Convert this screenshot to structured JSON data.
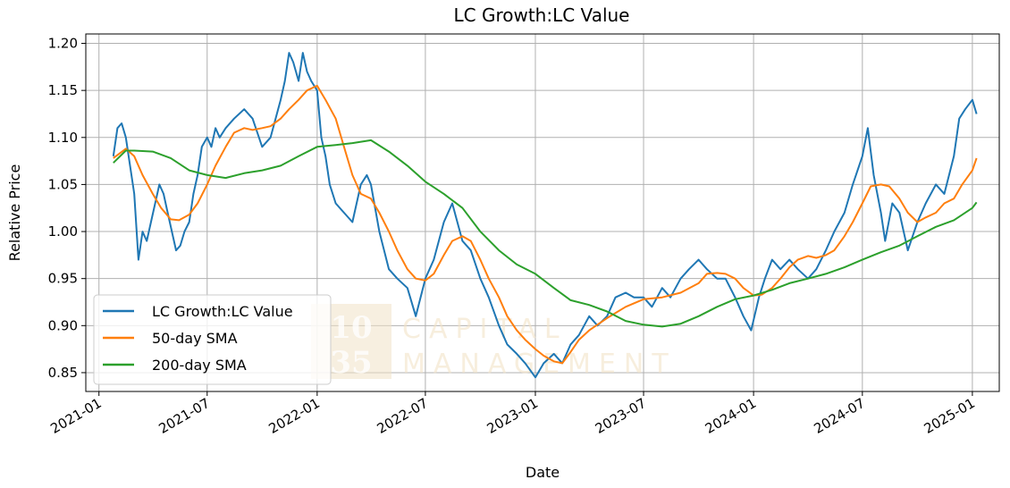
{
  "chart_data": {
    "type": "line",
    "title": "LC Growth:LC Value",
    "xlabel": "Date",
    "ylabel": "Relative Price",
    "xlim": [
      "2020-12-10",
      "2025-02-15"
    ],
    "ylim": [
      0.83,
      1.21
    ],
    "x_ticks": [
      "2021-01",
      "2021-07",
      "2022-01",
      "2022-07",
      "2023-01",
      "2023-07",
      "2024-01",
      "2024-07",
      "2025-01"
    ],
    "y_ticks": [
      "0.85",
      "0.90",
      "0.95",
      "1.00",
      "1.05",
      "1.10",
      "1.15",
      "1.20"
    ],
    "grid": true,
    "legend_position": "lower-left",
    "watermark": {
      "box_top": "10",
      "box_bottom": "35",
      "text_top": "CAPITAL",
      "text_bottom": "MANAGEMENT"
    },
    "series": [
      {
        "name": "LC Growth:LC Value",
        "color": "#1f77b4",
        "points": [
          [
            "2021-01-25",
            1.08
          ],
          [
            "2021-02-01",
            1.11
          ],
          [
            "2021-02-08",
            1.115
          ],
          [
            "2021-02-15",
            1.1
          ],
          [
            "2021-02-22",
            1.07
          ],
          [
            "2021-03-01",
            1.04
          ],
          [
            "2021-03-08",
            0.97
          ],
          [
            "2021-03-15",
            1.0
          ],
          [
            "2021-03-22",
            0.99
          ],
          [
            "2021-03-29",
            1.01
          ],
          [
            "2021-04-05",
            1.03
          ],
          [
            "2021-04-12",
            1.05
          ],
          [
            "2021-04-19",
            1.04
          ],
          [
            "2021-04-26",
            1.02
          ],
          [
            "2021-05-03",
            1.0
          ],
          [
            "2021-05-10",
            0.98
          ],
          [
            "2021-05-17",
            0.985
          ],
          [
            "2021-05-24",
            1.0
          ],
          [
            "2021-06-01",
            1.01
          ],
          [
            "2021-06-08",
            1.04
          ],
          [
            "2021-06-15",
            1.06
          ],
          [
            "2021-06-22",
            1.09
          ],
          [
            "2021-07-01",
            1.1
          ],
          [
            "2021-07-08",
            1.09
          ],
          [
            "2021-07-15",
            1.11
          ],
          [
            "2021-07-22",
            1.1
          ],
          [
            "2021-08-01",
            1.11
          ],
          [
            "2021-08-15",
            1.12
          ],
          [
            "2021-09-01",
            1.13
          ],
          [
            "2021-09-15",
            1.12
          ],
          [
            "2021-10-01",
            1.09
          ],
          [
            "2021-10-15",
            1.1
          ],
          [
            "2021-11-01",
            1.14
          ],
          [
            "2021-11-08",
            1.16
          ],
          [
            "2021-11-15",
            1.19
          ],
          [
            "2021-11-22",
            1.18
          ],
          [
            "2021-12-01",
            1.16
          ],
          [
            "2021-12-08",
            1.19
          ],
          [
            "2021-12-15",
            1.17
          ],
          [
            "2021-12-22",
            1.16
          ],
          [
            "2022-01-01",
            1.15
          ],
          [
            "2022-01-08",
            1.1
          ],
          [
            "2022-01-15",
            1.08
          ],
          [
            "2022-01-22",
            1.05
          ],
          [
            "2022-02-01",
            1.03
          ],
          [
            "2022-02-15",
            1.02
          ],
          [
            "2022-03-01",
            1.01
          ],
          [
            "2022-03-15",
            1.05
          ],
          [
            "2022-03-25",
            1.06
          ],
          [
            "2022-04-01",
            1.05
          ],
          [
            "2022-04-15",
            1.0
          ],
          [
            "2022-05-01",
            0.96
          ],
          [
            "2022-05-15",
            0.95
          ],
          [
            "2022-06-01",
            0.94
          ],
          [
            "2022-06-15",
            0.91
          ],
          [
            "2022-07-01",
            0.95
          ],
          [
            "2022-07-15",
            0.97
          ],
          [
            "2022-08-01",
            1.01
          ],
          [
            "2022-08-15",
            1.03
          ],
          [
            "2022-09-01",
            0.99
          ],
          [
            "2022-09-15",
            0.98
          ],
          [
            "2022-10-01",
            0.95
          ],
          [
            "2022-10-15",
            0.93
          ],
          [
            "2022-11-01",
            0.9
          ],
          [
            "2022-11-15",
            0.88
          ],
          [
            "2022-12-01",
            0.87
          ],
          [
            "2022-12-15",
            0.86
          ],
          [
            "2023-01-01",
            0.845
          ],
          [
            "2023-01-15",
            0.86
          ],
          [
            "2023-02-01",
            0.87
          ],
          [
            "2023-02-15",
            0.86
          ],
          [
            "2023-03-01",
            0.88
          ],
          [
            "2023-03-15",
            0.89
          ],
          [
            "2023-04-01",
            0.91
          ],
          [
            "2023-04-15",
            0.9
          ],
          [
            "2023-05-01",
            0.91
          ],
          [
            "2023-05-15",
            0.93
          ],
          [
            "2023-06-01",
            0.935
          ],
          [
            "2023-06-15",
            0.93
          ],
          [
            "2023-07-01",
            0.93
          ],
          [
            "2023-07-15",
            0.92
          ],
          [
            "2023-08-01",
            0.94
          ],
          [
            "2023-08-15",
            0.93
          ],
          [
            "2023-09-01",
            0.95
          ],
          [
            "2023-09-15",
            0.96
          ],
          [
            "2023-10-01",
            0.97
          ],
          [
            "2023-10-15",
            0.96
          ],
          [
            "2023-11-01",
            0.95
          ],
          [
            "2023-11-15",
            0.95
          ],
          [
            "2023-12-01",
            0.93
          ],
          [
            "2023-12-15",
            0.91
          ],
          [
            "2023-12-28",
            0.895
          ],
          [
            "2024-01-10",
            0.93
          ],
          [
            "2024-01-20",
            0.95
          ],
          [
            "2024-02-01",
            0.97
          ],
          [
            "2024-02-15",
            0.96
          ],
          [
            "2024-03-01",
            0.97
          ],
          [
            "2024-03-15",
            0.96
          ],
          [
            "2024-04-01",
            0.95
          ],
          [
            "2024-04-15",
            0.96
          ],
          [
            "2024-05-01",
            0.98
          ],
          [
            "2024-05-15",
            1.0
          ],
          [
            "2024-06-01",
            1.02
          ],
          [
            "2024-06-15",
            1.05
          ],
          [
            "2024-07-01",
            1.08
          ],
          [
            "2024-07-10",
            1.11
          ],
          [
            "2024-07-20",
            1.06
          ],
          [
            "2024-08-01",
            1.02
          ],
          [
            "2024-08-08",
            0.99
          ],
          [
            "2024-08-20",
            1.03
          ],
          [
            "2024-09-01",
            1.02
          ],
          [
            "2024-09-15",
            0.98
          ],
          [
            "2024-10-01",
            1.01
          ],
          [
            "2024-10-15",
            1.03
          ],
          [
            "2024-11-01",
            1.05
          ],
          [
            "2024-11-15",
            1.04
          ],
          [
            "2024-12-01",
            1.08
          ],
          [
            "2024-12-10",
            1.12
          ],
          [
            "2024-12-20",
            1.13
          ],
          [
            "2025-01-01",
            1.14
          ],
          [
            "2025-01-08",
            1.125
          ]
        ]
      },
      {
        "name": "50-day SMA",
        "color": "#ff7f0e",
        "points": [
          [
            "2021-01-25",
            1.078
          ],
          [
            "2021-02-15",
            1.088
          ],
          [
            "2021-03-01",
            1.08
          ],
          [
            "2021-03-15",
            1.06
          ],
          [
            "2021-04-01",
            1.04
          ],
          [
            "2021-04-15",
            1.025
          ],
          [
            "2021-05-01",
            1.013
          ],
          [
            "2021-05-15",
            1.012
          ],
          [
            "2021-06-01",
            1.018
          ],
          [
            "2021-06-15",
            1.03
          ],
          [
            "2021-07-01",
            1.05
          ],
          [
            "2021-07-15",
            1.07
          ],
          [
            "2021-08-01",
            1.09
          ],
          [
            "2021-08-15",
            1.105
          ],
          [
            "2021-09-01",
            1.11
          ],
          [
            "2021-09-15",
            1.108
          ],
          [
            "2021-10-01",
            1.11
          ],
          [
            "2021-10-15",
            1.112
          ],
          [
            "2021-11-01",
            1.12
          ],
          [
            "2021-11-15",
            1.13
          ],
          [
            "2021-12-01",
            1.14
          ],
          [
            "2021-12-15",
            1.15
          ],
          [
            "2022-01-01",
            1.155
          ],
          [
            "2022-01-15",
            1.14
          ],
          [
            "2022-02-01",
            1.12
          ],
          [
            "2022-02-15",
            1.09
          ],
          [
            "2022-03-01",
            1.06
          ],
          [
            "2022-03-15",
            1.04
          ],
          [
            "2022-04-01",
            1.035
          ],
          [
            "2022-04-15",
            1.02
          ],
          [
            "2022-05-01",
            1.0
          ],
          [
            "2022-05-15",
            0.98
          ],
          [
            "2022-06-01",
            0.96
          ],
          [
            "2022-06-15",
            0.95
          ],
          [
            "2022-07-01",
            0.948
          ],
          [
            "2022-07-15",
            0.955
          ],
          [
            "2022-08-01",
            0.975
          ],
          [
            "2022-08-15",
            0.99
          ],
          [
            "2022-09-01",
            0.995
          ],
          [
            "2022-09-15",
            0.99
          ],
          [
            "2022-10-01",
            0.97
          ],
          [
            "2022-10-15",
            0.95
          ],
          [
            "2022-11-01",
            0.93
          ],
          [
            "2022-11-15",
            0.91
          ],
          [
            "2022-12-01",
            0.895
          ],
          [
            "2022-12-15",
            0.885
          ],
          [
            "2023-01-01",
            0.875
          ],
          [
            "2023-01-15",
            0.868
          ],
          [
            "2023-02-01",
            0.862
          ],
          [
            "2023-02-15",
            0.86
          ],
          [
            "2023-03-01",
            0.872
          ],
          [
            "2023-03-15",
            0.885
          ],
          [
            "2023-04-01",
            0.895
          ],
          [
            "2023-05-01",
            0.908
          ],
          [
            "2023-06-01",
            0.92
          ],
          [
            "2023-07-01",
            0.928
          ],
          [
            "2023-08-01",
            0.93
          ],
          [
            "2023-09-01",
            0.935
          ],
          [
            "2023-10-01",
            0.945
          ],
          [
            "2023-10-15",
            0.955
          ],
          [
            "2023-11-01",
            0.956
          ],
          [
            "2023-11-15",
            0.955
          ],
          [
            "2023-12-01",
            0.95
          ],
          [
            "2023-12-15",
            0.94
          ],
          [
            "2024-01-01",
            0.932
          ],
          [
            "2024-01-15",
            0.933
          ],
          [
            "2024-02-01",
            0.94
          ],
          [
            "2024-02-15",
            0.95
          ],
          [
            "2024-03-01",
            0.962
          ],
          [
            "2024-03-15",
            0.97
          ],
          [
            "2024-04-01",
            0.974
          ],
          [
            "2024-04-15",
            0.972
          ],
          [
            "2024-05-01",
            0.975
          ],
          [
            "2024-05-15",
            0.98
          ],
          [
            "2024-06-01",
            0.995
          ],
          [
            "2024-06-15",
            1.01
          ],
          [
            "2024-07-01",
            1.03
          ],
          [
            "2024-07-15",
            1.048
          ],
          [
            "2024-08-01",
            1.05
          ],
          [
            "2024-08-15",
            1.048
          ],
          [
            "2024-09-01",
            1.035
          ],
          [
            "2024-09-15",
            1.02
          ],
          [
            "2024-10-01",
            1.01
          ],
          [
            "2024-10-15",
            1.015
          ],
          [
            "2024-11-01",
            1.02
          ],
          [
            "2024-11-15",
            1.03
          ],
          [
            "2024-12-01",
            1.035
          ],
          [
            "2024-12-15",
            1.05
          ],
          [
            "2025-01-01",
            1.065
          ],
          [
            "2025-01-08",
            1.078
          ]
        ]
      },
      {
        "name": "200-day SMA",
        "color": "#2ca02c",
        "points": [
          [
            "2021-01-25",
            1.073
          ],
          [
            "2021-02-15",
            1.086
          ],
          [
            "2021-03-01",
            1.086
          ],
          [
            "2021-04-01",
            1.085
          ],
          [
            "2021-05-01",
            1.078
          ],
          [
            "2021-06-01",
            1.065
          ],
          [
            "2021-07-01",
            1.06
          ],
          [
            "2021-08-01",
            1.057
          ],
          [
            "2021-09-01",
            1.062
          ],
          [
            "2021-10-01",
            1.065
          ],
          [
            "2021-11-01",
            1.07
          ],
          [
            "2021-12-01",
            1.08
          ],
          [
            "2022-01-01",
            1.09
          ],
          [
            "2022-02-01",
            1.092
          ],
          [
            "2022-03-01",
            1.094
          ],
          [
            "2022-04-01",
            1.097
          ],
          [
            "2022-05-01",
            1.085
          ],
          [
            "2022-06-01",
            1.07
          ],
          [
            "2022-07-01",
            1.053
          ],
          [
            "2022-08-01",
            1.04
          ],
          [
            "2022-09-01",
            1.025
          ],
          [
            "2022-10-01",
            1.0
          ],
          [
            "2022-11-01",
            0.98
          ],
          [
            "2022-12-01",
            0.965
          ],
          [
            "2023-01-01",
            0.955
          ],
          [
            "2023-02-01",
            0.94
          ],
          [
            "2023-03-01",
            0.927
          ],
          [
            "2023-04-01",
            0.922
          ],
          [
            "2023-05-01",
            0.915
          ],
          [
            "2023-06-01",
            0.905
          ],
          [
            "2023-07-01",
            0.901
          ],
          [
            "2023-08-01",
            0.899
          ],
          [
            "2023-09-01",
            0.902
          ],
          [
            "2023-10-01",
            0.91
          ],
          [
            "2023-11-01",
            0.92
          ],
          [
            "2023-12-01",
            0.928
          ],
          [
            "2024-01-01",
            0.932
          ],
          [
            "2024-02-01",
            0.938
          ],
          [
            "2024-03-01",
            0.945
          ],
          [
            "2024-04-01",
            0.95
          ],
          [
            "2024-05-01",
            0.955
          ],
          [
            "2024-06-01",
            0.962
          ],
          [
            "2024-07-01",
            0.97
          ],
          [
            "2024-08-01",
            0.978
          ],
          [
            "2024-09-01",
            0.985
          ],
          [
            "2024-10-01",
            0.995
          ],
          [
            "2024-11-01",
            1.005
          ],
          [
            "2024-12-01",
            1.012
          ],
          [
            "2025-01-01",
            1.025
          ],
          [
            "2025-01-08",
            1.031
          ]
        ]
      }
    ]
  }
}
